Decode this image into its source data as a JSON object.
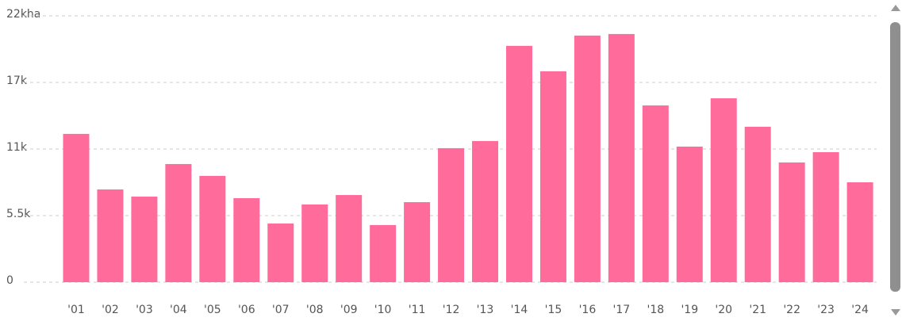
{
  "chart_data": {
    "type": "bar",
    "categories": [
      "'01",
      "'02",
      "'03",
      "'04",
      "'05",
      "'06",
      "'07",
      "'08",
      "'09",
      "'10",
      "'11",
      "'12",
      "'13",
      "'14",
      "'15",
      "'16",
      "'17",
      "'18",
      "'19",
      "'20",
      "'21",
      "'22",
      "'23",
      "'24"
    ],
    "values": [
      12250,
      7660,
      7070,
      9760,
      8780,
      6940,
      4850,
      6420,
      7200,
      4720,
      6610,
      11070,
      11660,
      19520,
      17420,
      20370,
      20500,
      14600,
      11200,
      15190,
      12840,
      9890,
      10740,
      8250
    ],
    "color": "#ff6b9b",
    "ylim": [
      0,
      22000
    ],
    "yticks": [
      0,
      {
        "value": 5500,
        "label": "5.5k"
      },
      {
        "value": 11000,
        "label": "11k"
      },
      {
        "value": 16500,
        "label": "17k"
      },
      {
        "value": 22000,
        "label": "22kha"
      }
    ],
    "grid": true
  }
}
